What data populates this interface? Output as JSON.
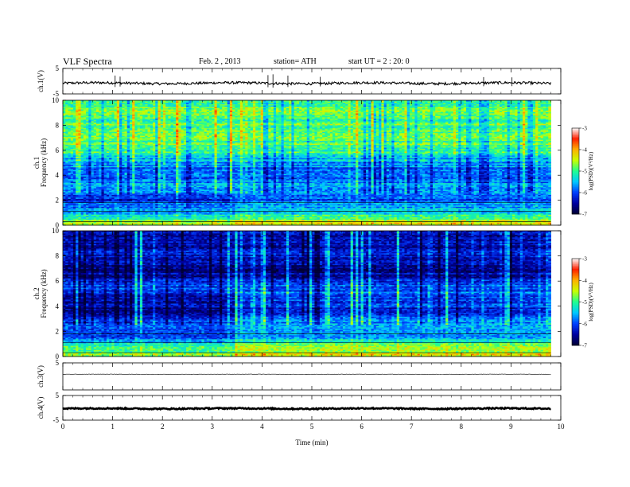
{
  "header": {
    "title": "VLF Spectra",
    "date": "Feb. 2 , 2013",
    "station": "station= ATH",
    "start": "start UT = 2 : 20: 0"
  },
  "colors": {
    "colormap": [
      "#000033",
      "#0000a0",
      "#0040ff",
      "#00c8ff",
      "#20ff90",
      "#c8ff00",
      "#ffb000",
      "#ff2000",
      "#ffffff"
    ],
    "trace": "#000000"
  },
  "chart_data": [
    {
      "id": "ch1_waveform",
      "type": "line",
      "ylabel": "ch.1(V)",
      "ylim": [
        -5,
        5
      ],
      "yticks": [
        5,
        -5
      ],
      "baseline_v": -0.8,
      "noise_v": 0.5,
      "spikes_min": [
        1.05,
        1.15,
        4.12,
        4.22,
        4.52,
        5.17,
        8.45,
        9.02
      ],
      "spike_amp_v": [
        3.0,
        2.6,
        3.2,
        3.5,
        3.0,
        2.5,
        2.4,
        2.3
      ]
    },
    {
      "id": "ch1_spectrogram",
      "type": "heatmap",
      "ylabel": "Frequency (kHz)",
      "channel_label": "ch.1",
      "ylim": [
        0,
        10
      ],
      "yticks": [
        0,
        2,
        4,
        6,
        8,
        10
      ],
      "zlabel": "log(PSD)(V²/Hz)",
      "zlim": [
        -7,
        -3
      ],
      "zticks": [
        -3,
        -4,
        -5,
        -6,
        -7
      ],
      "band_profile_khz": [
        [
          0,
          -4.4
        ],
        [
          0.6,
          -5.2
        ],
        [
          1,
          -5.6
        ],
        [
          1.5,
          -5.9
        ],
        [
          2,
          -6.2
        ],
        [
          2.5,
          -6.0
        ],
        [
          3,
          -5.5
        ],
        [
          4,
          -5.9
        ],
        [
          5,
          -5.7
        ],
        [
          6,
          -5.0
        ],
        [
          7,
          -4.8
        ],
        [
          8,
          -4.9
        ],
        [
          9,
          -4.9
        ],
        [
          10,
          -5.0
        ]
      ],
      "transitions": [
        {
          "time_min": 3.45,
          "fmax_khz": 2.6,
          "delta": 0.25
        }
      ]
    },
    {
      "id": "ch2_spectrogram",
      "type": "heatmap",
      "ylabel": "Frequency (kHz)",
      "channel_label": "ch.2",
      "ylim": [
        0,
        10
      ],
      "yticks": [
        0,
        2,
        4,
        6,
        8,
        10
      ],
      "zlabel": "log(PSD)(V²/Hz)",
      "zlim": [
        -7,
        -3
      ],
      "zticks": [
        -3,
        -4,
        -5,
        -6,
        -7
      ],
      "band_profile_khz": [
        [
          0,
          -4.6
        ],
        [
          0.5,
          -5.0
        ],
        [
          1,
          -5.2
        ],
        [
          1.5,
          -5.8
        ],
        [
          2,
          -6.0
        ],
        [
          3,
          -6.2
        ],
        [
          3.5,
          -6.6
        ],
        [
          4.5,
          -6.4
        ],
        [
          5.5,
          -6.0
        ],
        [
          6.5,
          -6.5
        ],
        [
          7,
          -6.6
        ],
        [
          8,
          -6.2
        ],
        [
          9,
          -6.5
        ],
        [
          10,
          -6.3
        ]
      ],
      "transitions": [
        {
          "time_min": 3.45,
          "fmax_khz": 5.2,
          "delta": 0.35
        }
      ]
    },
    {
      "id": "ch3_waveform",
      "type": "line",
      "ylabel": "ch.3(V)",
      "ylim": [
        -5,
        5
      ],
      "yticks": [
        5
      ],
      "baseline_v": 0.8,
      "noise_v": 0.05
    },
    {
      "id": "ch4_waveform",
      "type": "line",
      "ylabel": "ch.4(V)",
      "ylim": [
        -5,
        5
      ],
      "yticks": [
        5,
        -5
      ],
      "baseline_v": -0.3,
      "noise_v": 0.25
    }
  ],
  "x_axis": {
    "label": "Time (min)",
    "xlim": [
      0,
      10
    ],
    "ticks": [
      0,
      1,
      2,
      3,
      4,
      5,
      6,
      7,
      8,
      9,
      10
    ],
    "data_end_min": 9.8
  }
}
